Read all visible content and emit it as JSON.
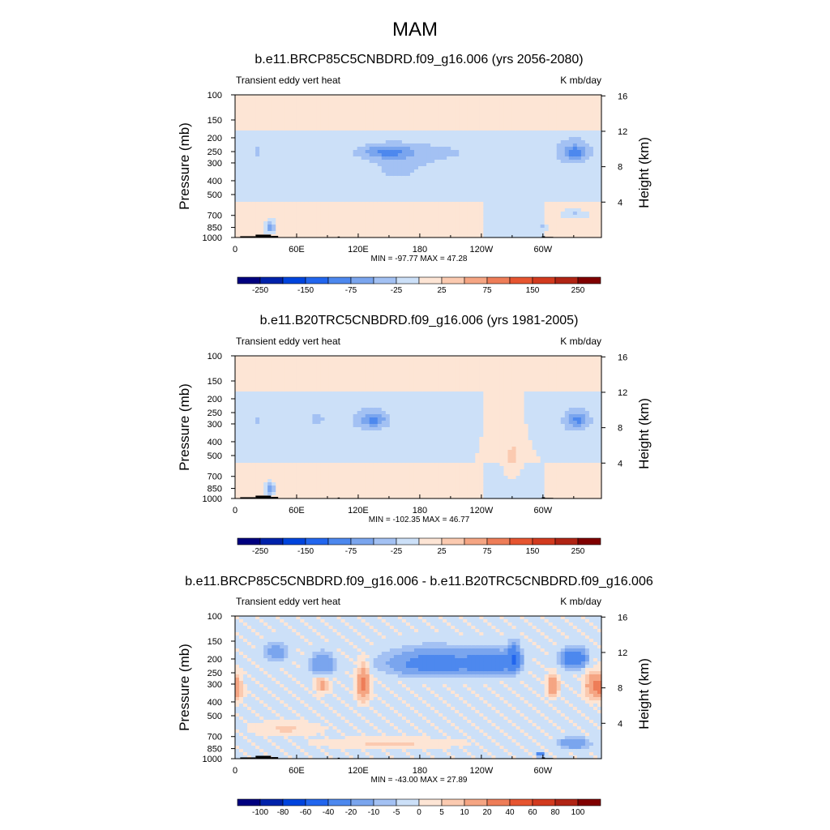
{
  "figure": {
    "title": "MAM"
  },
  "chart_data": [
    {
      "type": "heatmap",
      "title": "b.e11.BRCP85C5CNBDRD.f09_g16.006 (yrs 2056-2080)",
      "left_string": "Transient eddy vert heat",
      "right_string": "K mb/day",
      "xlabel": "",
      "ylabel": "Pressure (mb)",
      "ylabel_right": "Height (km)",
      "x_ticks": [
        "0",
        "60E",
        "120E",
        "180",
        "120W",
        "60W"
      ],
      "x_tick_values": [
        0,
        60,
        120,
        180,
        240,
        300
      ],
      "xlim": [
        0,
        357
      ],
      "y_ticks": [
        "100",
        "150",
        "200",
        "250",
        "300",
        "400",
        "500",
        "700",
        "850",
        "1000"
      ],
      "y_tick_values": [
        100,
        150,
        200,
        250,
        300,
        400,
        500,
        700,
        850,
        1000
      ],
      "ylim": [
        1000,
        100
      ],
      "right_ticks": [
        "16",
        "12",
        "8",
        "4"
      ],
      "right_tick_values": [
        16,
        12,
        8,
        4
      ],
      "stats": "MIN = -97.77  MAX =  47.28",
      "min": -97.77,
      "max": 47.28,
      "colorbar_labels": [
        "-250",
        "-150",
        "-75",
        "-25",
        "25",
        "75",
        "150",
        "250"
      ],
      "colorbar_levels": [
        -300,
        -250,
        -200,
        -150,
        -100,
        -75,
        -50,
        -25,
        0,
        25,
        50,
        75,
        100,
        150,
        200,
        250,
        300
      ],
      "colors": [
        "#00007f",
        "#0022aa",
        "#0044dd",
        "#2266ee",
        "#4d88ee",
        "#7aa5ee",
        "#a3c1f3",
        "#cce0f8",
        "#fde5d5",
        "#fbcab0",
        "#f5a583",
        "#ee7d58",
        "#e65530",
        "#d23a1e",
        "#b02414",
        "#800000"
      ],
      "blobs": [
        {
          "lon": 178,
          "p": 255,
          "dlon": 95,
          "dp": 55,
          "v": -30
        },
        {
          "lon": 160,
          "p": 340,
          "dlon": 30,
          "dp": 90,
          "v": -30
        },
        {
          "lon": 148,
          "p": 250,
          "dlon": 22,
          "dp": 25,
          "v": -55
        },
        {
          "lon": 330,
          "p": 250,
          "dlon": 22,
          "dp": 70,
          "v": -40
        },
        {
          "lon": 332,
          "p": 255,
          "dlon": 10,
          "dp": 25,
          "v": -60
        },
        {
          "lon": 22,
          "p": 250,
          "dlon": 5,
          "dp": 50,
          "v": -30
        },
        {
          "lon": 34,
          "p": 850,
          "dlon": 4,
          "dp": 70,
          "v": -75
        },
        {
          "lon": 300,
          "p": 850,
          "dlon": 4,
          "dp": 40,
          "v": -40
        },
        {
          "lon": 330,
          "p": 690,
          "dlon": 10,
          "dp": 40,
          "v": -30
        },
        {
          "lon": 200,
          "p": 160,
          "dlon": 150,
          "dp": 30,
          "v": 0
        }
      ]
    },
    {
      "type": "heatmap",
      "title": "b.e11.B20TRC5CNBDRD.f09_g16.006 (yrs 1981-2005)",
      "left_string": "Transient eddy vert heat",
      "right_string": "K mb/day",
      "xlabel": "",
      "ylabel": "Pressure (mb)",
      "ylabel_right": "Height (km)",
      "x_ticks": [
        "0",
        "60E",
        "120E",
        "180",
        "120W",
        "60W"
      ],
      "x_tick_values": [
        0,
        60,
        120,
        180,
        240,
        300
      ],
      "xlim": [
        0,
        357
      ],
      "y_ticks": [
        "100",
        "150",
        "200",
        "250",
        "300",
        "400",
        "500",
        "700",
        "850",
        "1000"
      ],
      "y_tick_values": [
        100,
        150,
        200,
        250,
        300,
        400,
        500,
        700,
        850,
        1000
      ],
      "ylim": [
        1000,
        100
      ],
      "right_ticks": [
        "16",
        "12",
        "8",
        "4"
      ],
      "right_tick_values": [
        16,
        12,
        8,
        4
      ],
      "stats": "MIN = -102.35  MAX =  46.77",
      "min": -102.35,
      "max": 46.77,
      "colorbar_labels": [
        "-250",
        "-150",
        "-75",
        "-25",
        "25",
        "75",
        "150",
        "250"
      ],
      "colorbar_levels": [
        -300,
        -250,
        -200,
        -150,
        -100,
        -75,
        -50,
        -25,
        0,
        25,
        50,
        75,
        100,
        150,
        200,
        250,
        300
      ],
      "colors": [
        "#00007f",
        "#0022aa",
        "#0044dd",
        "#2266ee",
        "#4d88ee",
        "#7aa5ee",
        "#a3c1f3",
        "#cce0f8",
        "#fde5d5",
        "#fbcab0",
        "#f5a583",
        "#ee7d58",
        "#e65530",
        "#d23a1e",
        "#b02414",
        "#800000"
      ],
      "blobs": [
        {
          "lon": 130,
          "p": 285,
          "dlon": 30,
          "dp": 80,
          "v": -30
        },
        {
          "lon": 135,
          "p": 280,
          "dlon": 12,
          "dp": 35,
          "v": -55
        },
        {
          "lon": 80,
          "p": 280,
          "dlon": 10,
          "dp": 45,
          "v": -30
        },
        {
          "lon": 330,
          "p": 290,
          "dlon": 22,
          "dp": 80,
          "v": -30
        },
        {
          "lon": 335,
          "p": 280,
          "dlon": 10,
          "dp": 35,
          "v": -55
        },
        {
          "lon": 23,
          "p": 280,
          "dlon": 5,
          "dp": 35,
          "v": -30
        },
        {
          "lon": 34,
          "p": 860,
          "dlon": 4,
          "dp": 70,
          "v": -75
        },
        {
          "lon": 297,
          "p": 860,
          "dlon": 4,
          "dp": 30,
          "v": -40
        },
        {
          "lon": 270,
          "p": 500,
          "dlon": 8,
          "dp": 160,
          "v": 30
        }
      ]
    },
    {
      "type": "heatmap",
      "title": "b.e11.BRCP85C5CNBDRD.f09_g16.006 - b.e11.B20TRC5CNBDRD.f09_g16.006",
      "left_string": "Transient eddy vert heat",
      "right_string": "K mb/day",
      "xlabel": "",
      "ylabel": "Pressure (mb)",
      "ylabel_right": "Height (km)",
      "x_ticks": [
        "0",
        "60E",
        "120E",
        "180",
        "120W",
        "60W"
      ],
      "x_tick_values": [
        0,
        60,
        120,
        180,
        240,
        300
      ],
      "xlim": [
        0,
        357
      ],
      "y_ticks": [
        "100",
        "150",
        "200",
        "250",
        "300",
        "400",
        "500",
        "700",
        "850",
        "1000"
      ],
      "y_tick_values": [
        100,
        150,
        200,
        250,
        300,
        400,
        500,
        700,
        850,
        1000
      ],
      "ylim": [
        1000,
        100
      ],
      "right_ticks": [
        "16",
        "12",
        "8",
        "4"
      ],
      "right_tick_values": [
        16,
        12,
        8,
        4
      ],
      "stats": "MIN = -43.00  MAX =  27.89",
      "min": -43.0,
      "max": 27.89,
      "colorbar_labels": [
        "-100",
        "-80",
        "-60",
        "-40",
        "-20",
        "-10",
        "-5",
        "0",
        "5",
        "10",
        "20",
        "40",
        "60",
        "80",
        "100"
      ],
      "colorbar_levels": [
        -120,
        -100,
        -80,
        -60,
        -40,
        -20,
        -10,
        -5,
        0,
        5,
        10,
        20,
        40,
        60,
        80,
        100,
        120
      ],
      "colors": [
        "#00007f",
        "#0022aa",
        "#0044dd",
        "#2266ee",
        "#4d88ee",
        "#7aa5ee",
        "#a3c1f3",
        "#cce0f8",
        "#fde5d5",
        "#fbcab0",
        "#f5a583",
        "#ee7d58",
        "#e65530",
        "#d23a1e",
        "#b02414",
        "#800000"
      ],
      "blobs": [
        {
          "lon": 195,
          "p": 215,
          "dlon": 45,
          "dp": 45,
          "v": -30
        },
        {
          "lon": 250,
          "p": 215,
          "dlon": 20,
          "dp": 40,
          "v": -30
        },
        {
          "lon": 272,
          "p": 200,
          "dlon": 6,
          "dp": 40,
          "v": -40
        },
        {
          "lon": 330,
          "p": 200,
          "dlon": 12,
          "dp": 30,
          "v": -40
        },
        {
          "lon": 85,
          "p": 220,
          "dlon": 12,
          "dp": 40,
          "v": -20
        },
        {
          "lon": 40,
          "p": 180,
          "dlon": 12,
          "dp": 30,
          "v": -15
        },
        {
          "lon": 125,
          "p": 300,
          "dlon": 6,
          "dp": 80,
          "v": 25
        },
        {
          "lon": 0,
          "p": 330,
          "dlon": 6,
          "dp": 60,
          "v": 20
        },
        {
          "lon": 350,
          "p": 310,
          "dlon": 8,
          "dp": 60,
          "v": 22
        },
        {
          "lon": 310,
          "p": 310,
          "dlon": 5,
          "dp": 50,
          "v": 20
        },
        {
          "lon": 85,
          "p": 300,
          "dlon": 6,
          "dp": 40,
          "v": 15
        },
        {
          "lon": 330,
          "p": 780,
          "dlon": 15,
          "dp": 70,
          "v": -20
        },
        {
          "lon": 298,
          "p": 930,
          "dlon": 4,
          "dp": 40,
          "v": -30
        },
        {
          "lon": 150,
          "p": 780,
          "dlon": 60,
          "dp": 60,
          "v": 6
        },
        {
          "lon": 50,
          "p": 620,
          "dlon": 30,
          "dp": 60,
          "v": 6
        }
      ]
    }
  ]
}
